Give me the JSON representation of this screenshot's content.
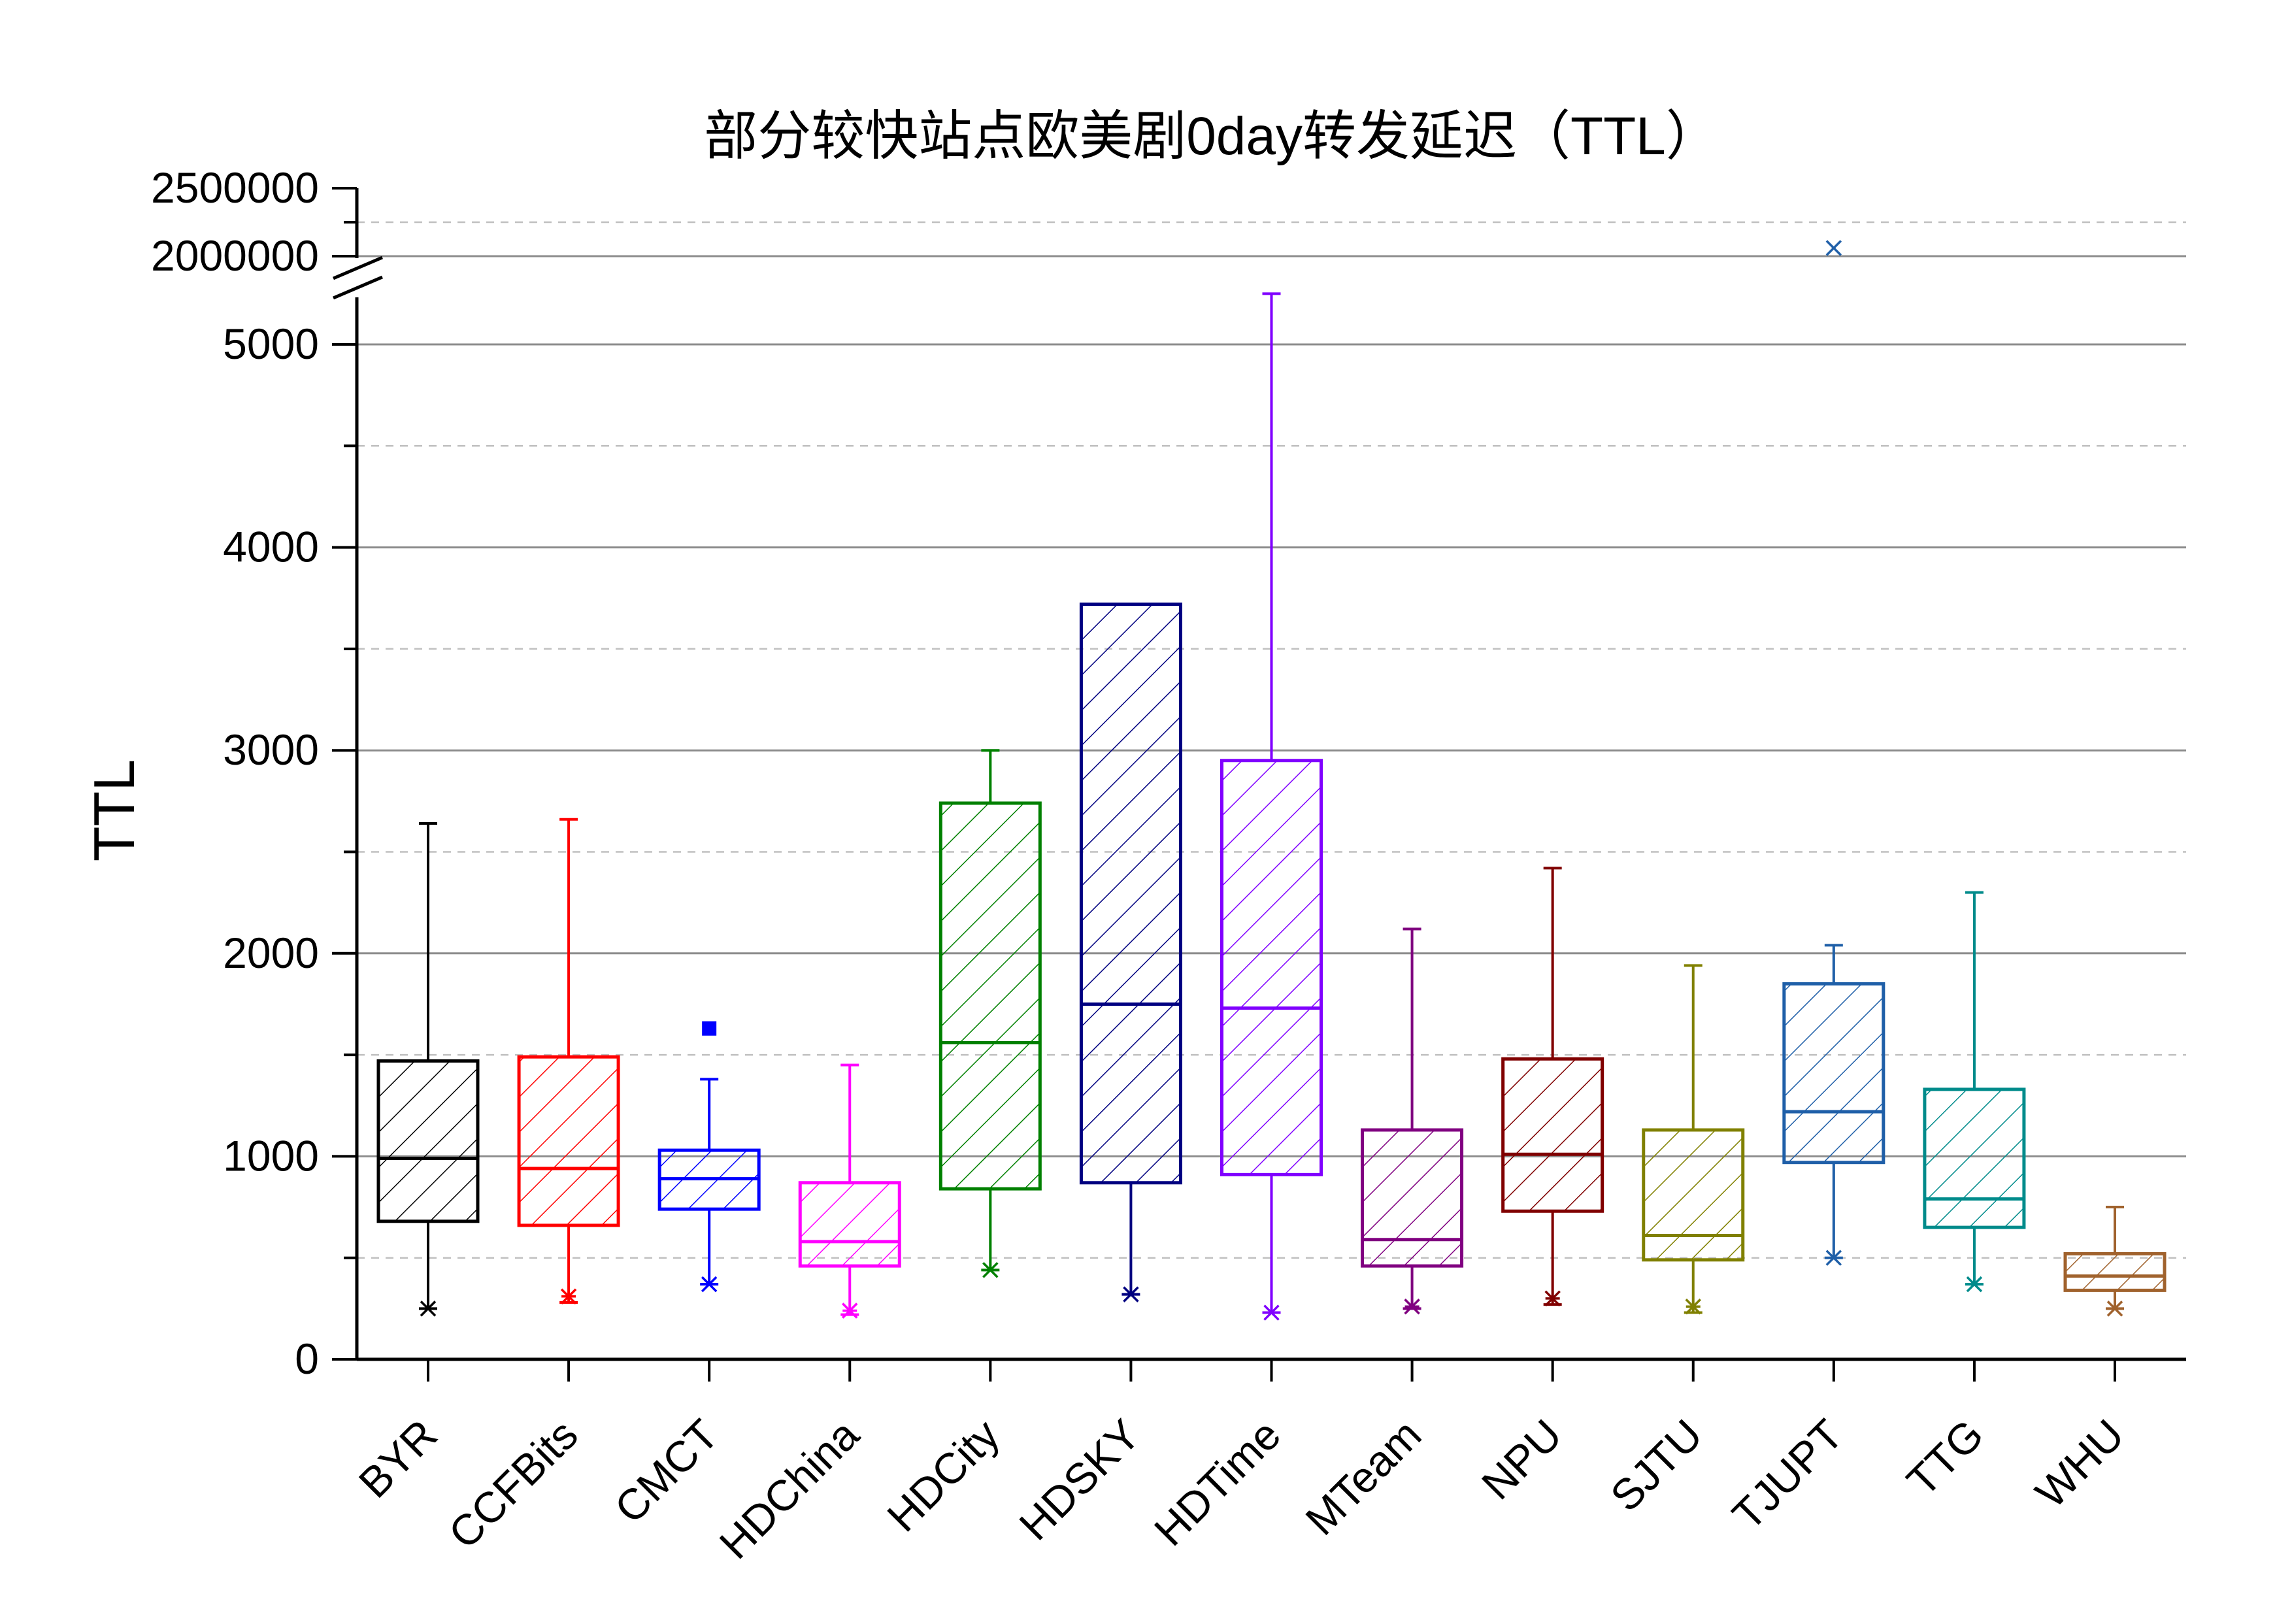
{
  "chart_data": {
    "type": "box",
    "title": "部分较快站点欧美剧0day转发延迟（TTL）",
    "xlabel": "",
    "ylabel": "TTL",
    "ylim_lower": [
      0,
      5200
    ],
    "ylim_upper": [
      1800000,
      2500000
    ],
    "yticks_lower": [
      "0",
      "1000",
      "2000",
      "3000",
      "4000",
      "5000"
    ],
    "yticks_upper": [
      "2000000",
      "2500000"
    ],
    "axis_break": true,
    "grid": true,
    "legend": "none",
    "categories": [
      "BYR",
      "CCFBits",
      "CMCT",
      "HDChina",
      "HDCity",
      "HDSKY",
      "HDTime",
      "MTeam",
      "NPU",
      "SJTU",
      "TJUPT",
      "TTG",
      "WHU"
    ],
    "boxes": [
      {
        "name": "BYR",
        "color": "#000000",
        "whisker_low": 250,
        "q1": 680,
        "median": 990,
        "q3": 1470,
        "whisker_high": 2640,
        "outliers": [
          250
        ]
      },
      {
        "name": "CCFBits",
        "color": "#ff0000",
        "whisker_low": 280,
        "q1": 660,
        "median": 940,
        "q3": 1490,
        "whisker_high": 2660,
        "outliers": [
          310
        ]
      },
      {
        "name": "CMCT",
        "color": "#0000ff",
        "whisker_low": 370,
        "q1": 740,
        "median": 890,
        "q3": 1030,
        "whisker_high": 1380,
        "outliers": [
          370,
          1630
        ]
      },
      {
        "name": "HDChina",
        "color": "#ff00ff",
        "whisker_low": 220,
        "q1": 460,
        "median": 580,
        "q3": 870,
        "whisker_high": 1450,
        "outliers": [
          240
        ]
      },
      {
        "name": "HDCity",
        "color": "#008000",
        "whisker_low": 440,
        "q1": 840,
        "median": 1560,
        "q3": 2740,
        "whisker_high": 3000,
        "outliers": [
          440
        ]
      },
      {
        "name": "HDSKY",
        "color": "#000080",
        "whisker_low": 320,
        "q1": 870,
        "median": 1750,
        "q3": 3720,
        "whisker_high": 3720,
        "outliers": [
          320
        ]
      },
      {
        "name": "HDTime",
        "color": "#8000ff",
        "whisker_low": 230,
        "q1": 910,
        "median": 1730,
        "q3": 2950,
        "whisker_high": 5250,
        "outliers": [
          230
        ]
      },
      {
        "name": "MTeam",
        "color": "#800080",
        "whisker_low": 250,
        "q1": 460,
        "median": 590,
        "q3": 1130,
        "whisker_high": 2120,
        "outliers": [
          260
        ]
      },
      {
        "name": "NPU",
        "color": "#800000",
        "whisker_low": 270,
        "q1": 730,
        "median": 1010,
        "q3": 1480,
        "whisker_high": 2420,
        "outliers": [
          300
        ]
      },
      {
        "name": "SJTU",
        "color": "#808000",
        "whisker_low": 230,
        "q1": 490,
        "median": 610,
        "q3": 1130,
        "whisker_high": 1940,
        "outliers": [
          260
        ]
      },
      {
        "name": "TJUPT",
        "color": "#1f5fa8",
        "whisker_low": 500,
        "q1": 970,
        "median": 1220,
        "q3": 1850,
        "whisker_high": 2040,
        "outliers": [
          500,
          2060000
        ]
      },
      {
        "name": "TTG",
        "color": "#008b8b",
        "whisker_low": 370,
        "q1": 650,
        "median": 790,
        "q3": 1330,
        "whisker_high": 2300,
        "outliers": [
          370
        ]
      },
      {
        "name": "WHU",
        "color": "#a0622d",
        "whisker_low": 250,
        "q1": 340,
        "median": 410,
        "q3": 520,
        "whisker_high": 750,
        "outliers": [
          250
        ]
      }
    ]
  }
}
